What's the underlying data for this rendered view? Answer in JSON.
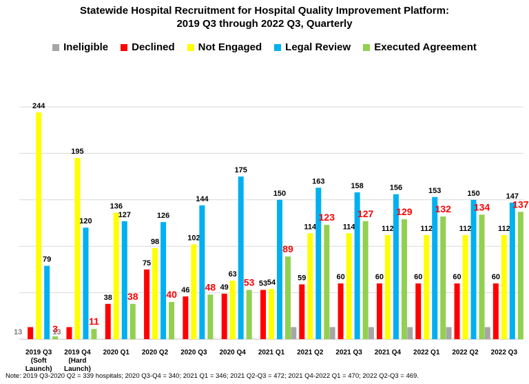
{
  "chart_data": {
    "type": "bar",
    "title_line1": "Statewide Hospital Recruitment for Hospital Quality Improvement Platform:",
    "title_line2": "2019 Q3 through 2022 Q3, Quarterly",
    "categories": [
      [
        "2019 Q3",
        "(Soft",
        "Launch)"
      ],
      [
        "2019 Q4",
        "(Hard",
        "Launch)"
      ],
      [
        "2020 Q1"
      ],
      [
        "2020 Q2"
      ],
      [
        "2020 Q3"
      ],
      [
        "2020 Q4"
      ],
      [
        "2021 Q1"
      ],
      [
        "2021 Q2"
      ],
      [
        "2021 Q3"
      ],
      [
        "2021 Q4"
      ],
      [
        "2022 Q1"
      ],
      [
        "2022 Q2"
      ],
      [
        "2022 Q3"
      ]
    ],
    "ylim": [
      0,
      250
    ],
    "grid": true,
    "legend_position": "top",
    "series": [
      {
        "name": "Ineligible",
        "color": "#a6a6a6",
        "label_color": "#7f7f7f",
        "values": [
          null,
          null,
          null,
          null,
          null,
          null,
          null,
          13,
          13,
          13,
          13,
          13,
          13
        ],
        "labels": [
          "13",
          "13",
          "",
          "",
          "",
          "",
          "",
          "",
          "",
          "",
          "",
          "",
          ""
        ],
        "label_style": "gray"
      },
      {
        "name": "Declined",
        "color": "#ff0000",
        "label_color": "#000000",
        "values": [
          13,
          13,
          38,
          75,
          46,
          49,
          53,
          59,
          60,
          60,
          60,
          60,
          60
        ],
        "labels": [
          "",
          "",
          "38",
          "75",
          "46",
          "49",
          "53",
          "59",
          "60",
          "60",
          "60",
          "60",
          "60"
        ]
      },
      {
        "name": "Not Engaged",
        "color": "#ffff00",
        "label_color": "#000000",
        "values": [
          244,
          195,
          136,
          98,
          102,
          63,
          54,
          114,
          114,
          112,
          112,
          112,
          112
        ],
        "labels": [
          "244",
          "195",
          "136",
          "98",
          "102",
          "63",
          "54",
          "114",
          "114",
          "112",
          "112",
          "112",
          "112"
        ]
      },
      {
        "name": "Legal Review",
        "color": "#00b0f0",
        "label_color": "#000000",
        "values": [
          79,
          120,
          127,
          126,
          144,
          175,
          150,
          163,
          158,
          156,
          153,
          150,
          147
        ],
        "labels": [
          "79",
          "120",
          "127",
          "126",
          "144",
          "175",
          "150",
          "163",
          "158",
          "156",
          "153",
          "150",
          "147"
        ]
      },
      {
        "name": "Executed Agreement",
        "color": "#92d050",
        "label_color": "#ff0000",
        "values": [
          3,
          11,
          38,
          40,
          48,
          53,
          89,
          123,
          127,
          129,
          132,
          134,
          137
        ],
        "labels": [
          "3",
          "11",
          "38",
          "40",
          "48",
          "53",
          "89",
          "123",
          "127",
          "129",
          "132",
          "134",
          "137"
        ]
      }
    ],
    "first_quarter_labels": [
      "13",
      "13"
    ]
  },
  "note": "Note: 2019 Q3-2020 Q2 = 339 hospitals; 2020 Q3-Q4 = 340; 2021 Q1 = 346; 2021 Q2-Q3 = 472; 2021 Q4-2022 Q1 = 470; 2022 Q2-Q3 = 469."
}
